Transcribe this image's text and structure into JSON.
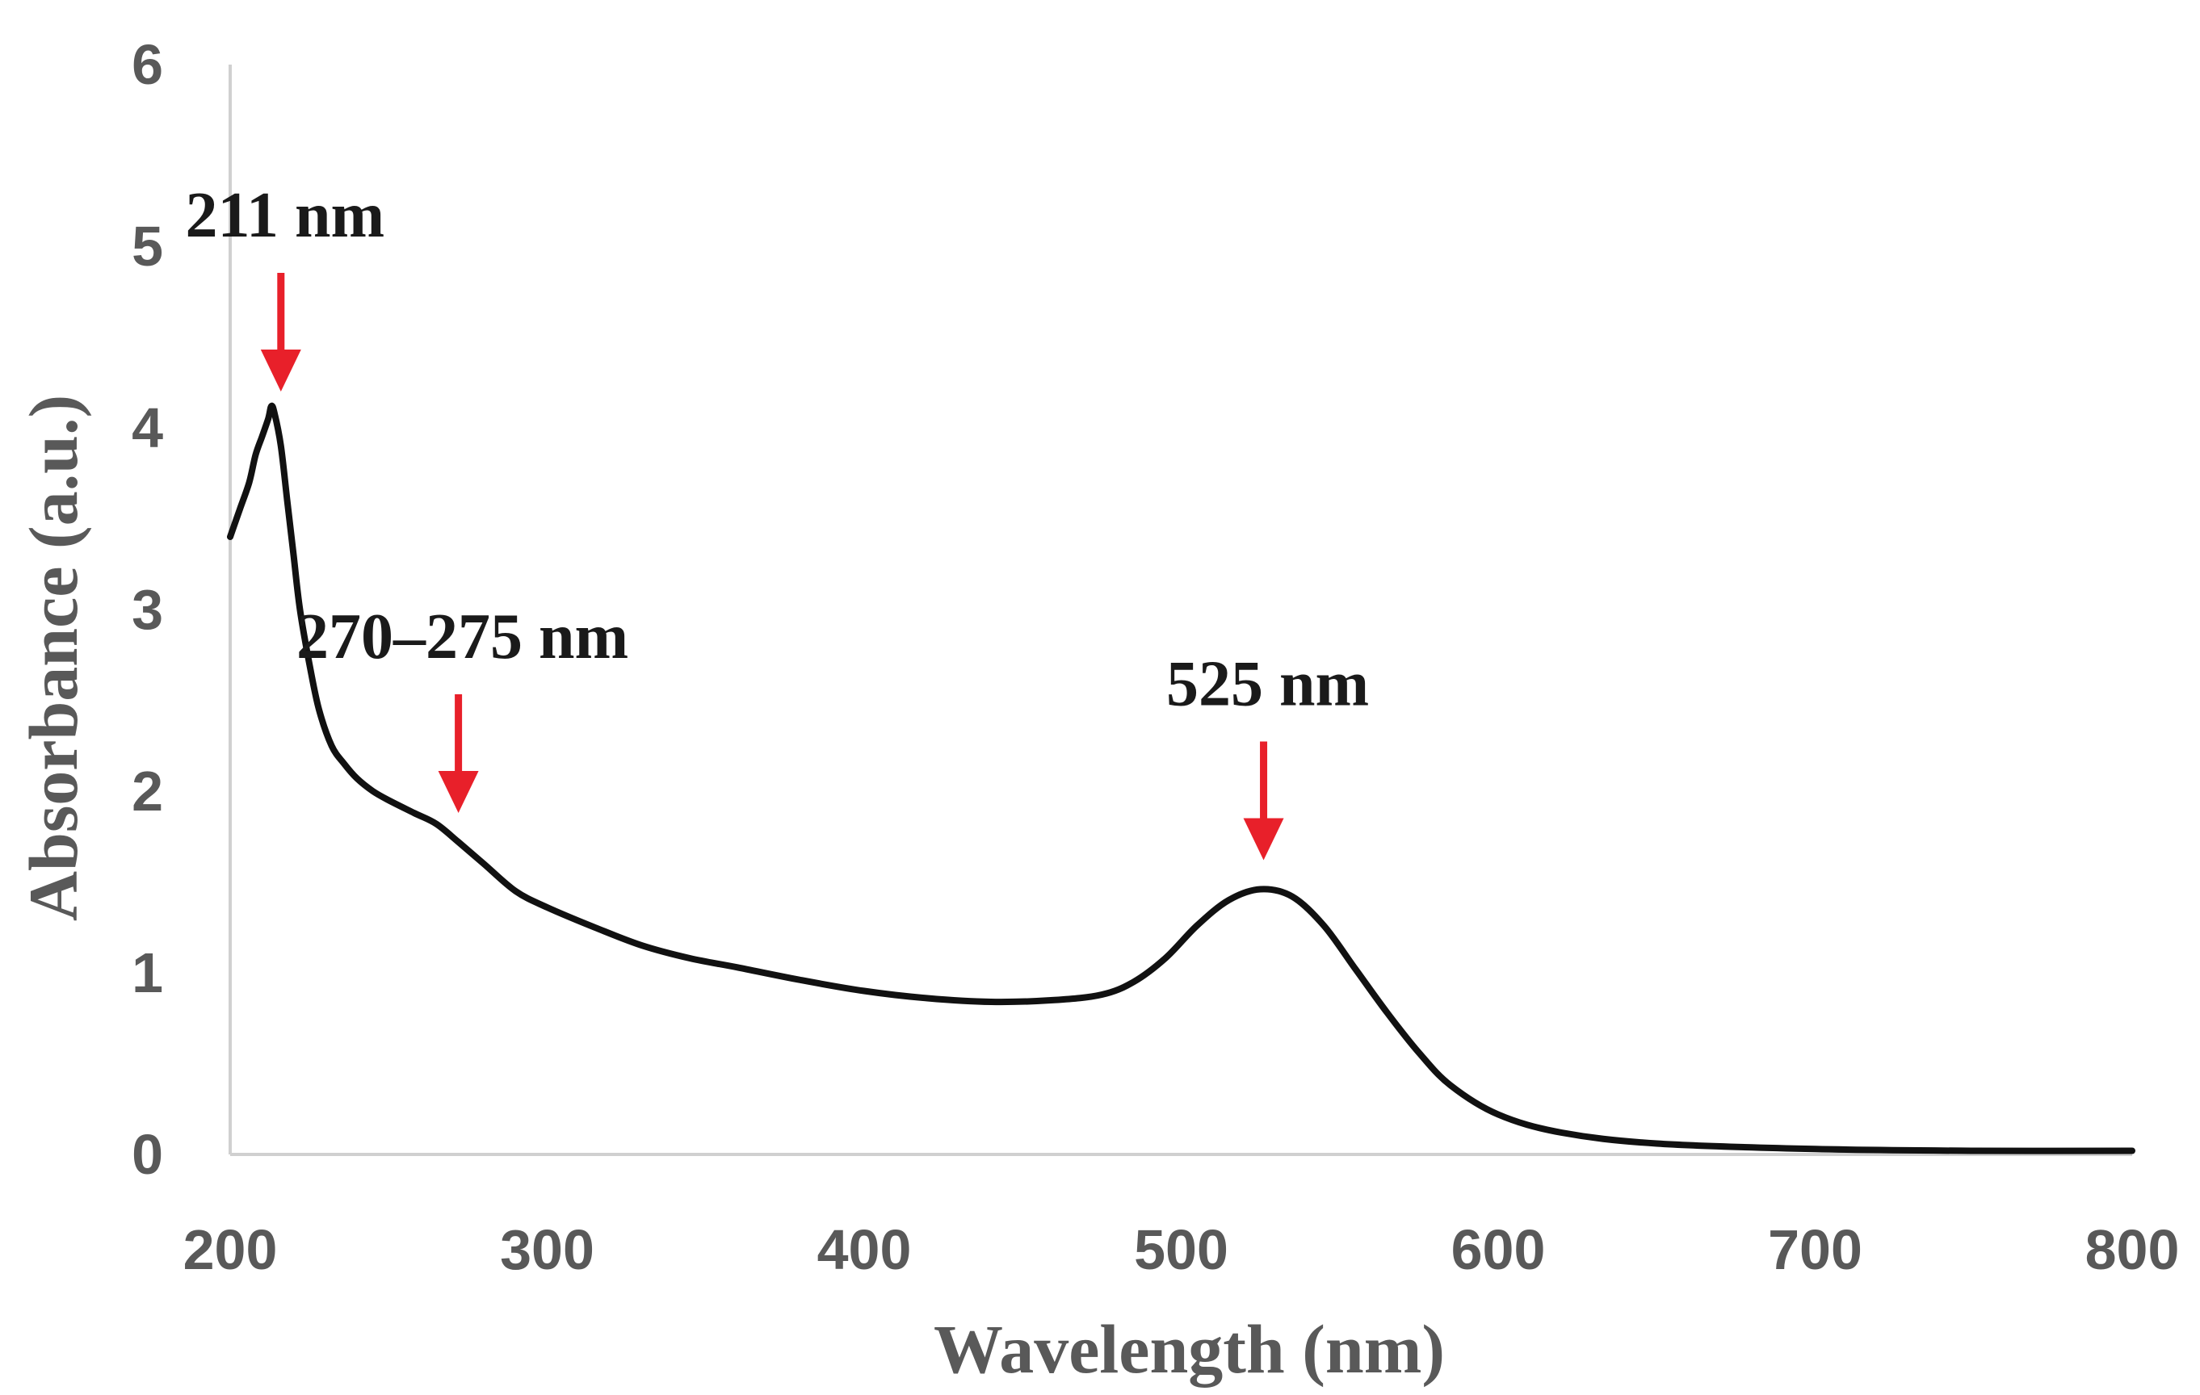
{
  "chart_data": {
    "type": "line",
    "title": "",
    "xlabel": "Wavelength (nm)",
    "ylabel": "Absorbance (a.u.)",
    "xlim": [
      200,
      800
    ],
    "ylim": [
      0,
      6
    ],
    "x_ticks": [
      "200",
      "300",
      "400",
      "500",
      "600",
      "700",
      "800"
    ],
    "y_ticks": [
      "0",
      "1",
      "2",
      "3",
      "4",
      "5",
      "6"
    ],
    "grid": false,
    "legend": "none",
    "series": [
      {
        "name": "Absorbance",
        "color": "#111111",
        "x": [
          200,
          203,
          206,
          208,
          210,
          212,
          213,
          214,
          216,
          218,
          220,
          222,
          225,
          228,
          232,
          236,
          240,
          245,
          250,
          258,
          265,
          272,
          280,
          290,
          300,
          315,
          330,
          345,
          360,
          380,
          400,
          420,
          440,
          460,
          475,
          485,
          495,
          505,
          515,
          525,
          535,
          545,
          555,
          565,
          575,
          585,
          600,
          620,
          650,
          700,
          750,
          800
        ],
        "y": [
          3.4,
          3.55,
          3.7,
          3.85,
          3.95,
          4.05,
          4.12,
          4.08,
          3.9,
          3.6,
          3.3,
          3.0,
          2.7,
          2.45,
          2.25,
          2.15,
          2.07,
          2.0,
          1.95,
          1.88,
          1.82,
          1.72,
          1.6,
          1.45,
          1.36,
          1.25,
          1.15,
          1.08,
          1.03,
          0.96,
          0.9,
          0.86,
          0.84,
          0.85,
          0.88,
          0.95,
          1.08,
          1.26,
          1.4,
          1.46,
          1.42,
          1.26,
          1.02,
          0.78,
          0.56,
          0.38,
          0.22,
          0.12,
          0.06,
          0.03,
          0.02,
          0.02
        ]
      }
    ],
    "annotations": [
      {
        "label": "211 nm",
        "x": 216,
        "y": 4.2,
        "color": "#e8202a"
      },
      {
        "label": "270–275 nm",
        "x": 272,
        "y": 1.88,
        "color": "#e8202a"
      },
      {
        "label": "525 nm",
        "x": 526,
        "y": 1.62,
        "color": "#e8202a"
      }
    ]
  }
}
